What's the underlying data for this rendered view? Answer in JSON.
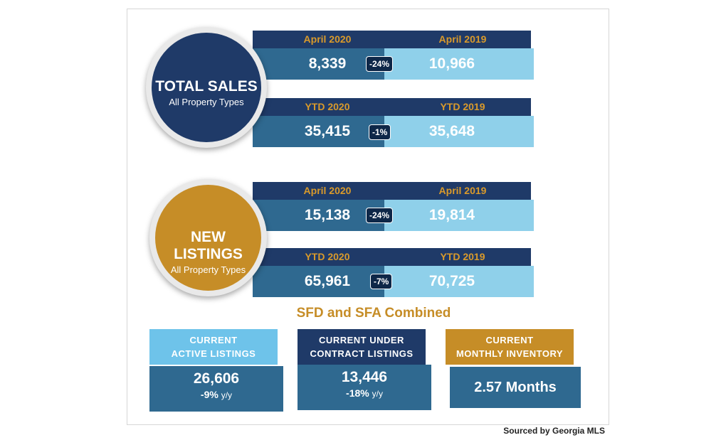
{
  "total_sales": {
    "title": "TOTAL SALES",
    "subtitle": "All Property Types",
    "month": {
      "left_label": "April 2020",
      "right_label": "April 2019",
      "left_value": "8,339",
      "change": "-24%",
      "right_value": "10,966"
    },
    "ytd": {
      "left_label": "YTD 2020",
      "right_label": "YTD 2019",
      "left_value": "35,415",
      "change": "-1%",
      "right_value": "35,648"
    }
  },
  "new_listings": {
    "title": "NEW LISTINGS",
    "subtitle": "All Property Types",
    "month": {
      "left_label": "April 2020",
      "right_label": "April 2019",
      "left_value": "15,138",
      "change": "-24%",
      "right_value": "19,814"
    },
    "ytd": {
      "left_label": "YTD 2020",
      "right_label": "YTD 2019",
      "left_value": "65,961",
      "change": "-7%",
      "right_value": "70,725"
    }
  },
  "section_title": "SFD and SFA Combined",
  "cards": {
    "active": {
      "line1": "CURRENT",
      "line2": "ACTIVE LISTINGS",
      "value": "26,606",
      "change": "-9%",
      "unit": "y/y"
    },
    "under_contract": {
      "line1": "CURRENT UNDER",
      "line2": "CONTRACT LISTINGS",
      "value": "13,446",
      "change": "-18%",
      "unit": "y/y"
    },
    "inventory": {
      "line1": "CURRENT",
      "line2": "MONTHLY INVENTORY",
      "value": "2.57 Months"
    }
  },
  "source": "Sourced by Georgia MLS",
  "colors": {
    "navy": "#1f3a68",
    "gold": "#c68d27",
    "steel": "#2f6990",
    "sky": "#8fd0ea",
    "light_blue": "#6ec3ea"
  }
}
